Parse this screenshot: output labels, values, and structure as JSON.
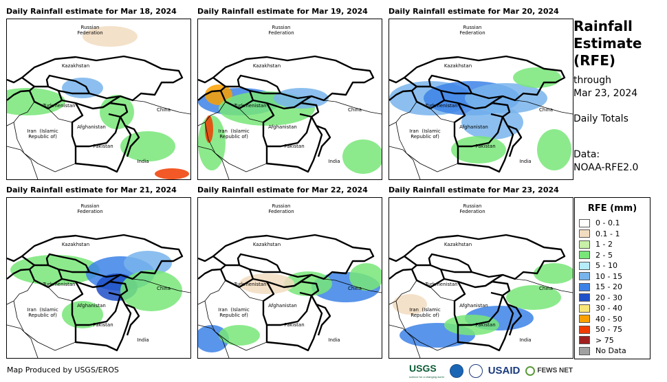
{
  "panels": [
    {
      "title": "Daily Rainfall estimate for Mar 18, 2024"
    },
    {
      "title": "Daily Rainfall estimate for Mar 19, 2024"
    },
    {
      "title": "Daily Rainfall estimate for Mar 20, 2024"
    },
    {
      "title": "Daily Rainfall estimate for Mar 21, 2024"
    },
    {
      "title": "Daily Rainfall estimate for Mar 22, 2024"
    },
    {
      "title": "Daily Rainfall estimate for Mar 23, 2024"
    }
  ],
  "labels": {
    "russia": "Russian\nFederation",
    "kazakhstan": "Kazakhstan",
    "turkmenistan": "Turkmenistan",
    "china": "China",
    "iran": "Iran  (Islamic\nRepublic of)",
    "afghanistan": "Afghanistan",
    "pakistan": "Pakistan",
    "india": "India"
  },
  "sidebar": {
    "title_line1": "Rainfall",
    "title_line2": "Estimate",
    "title_line3": "(RFE)",
    "through": "through",
    "date": "Mar 23, 2024",
    "totals": "Daily Totals",
    "data_label": "Data:",
    "data_source": "NOAA-RFE2.0"
  },
  "legend": {
    "title": "RFE (mm)",
    "items": [
      {
        "label": "0 - 0.1",
        "color": "#ffffff"
      },
      {
        "label": "0.1 - 1",
        "color": "#f2dcc0"
      },
      {
        "label": "1 - 2",
        "color": "#c8f0a8"
      },
      {
        "label": "2 - 5",
        "color": "#78e678"
      },
      {
        "label": "5 - 10",
        "color": "#b4ecf8"
      },
      {
        "label": "10 - 15",
        "color": "#78b4ec"
      },
      {
        "label": "15 - 20",
        "color": "#3c82e6"
      },
      {
        "label": "20 - 30",
        "color": "#1e50c8"
      },
      {
        "label": "30 - 40",
        "color": "#fae678"
      },
      {
        "label": "40 - 50",
        "color": "#faa000"
      },
      {
        "label": "50 - 75",
        "color": "#f03c00"
      },
      {
        "label": "> 75",
        "color": "#a01e1e"
      },
      {
        "label": "No Data",
        "color": "#a0a0a0"
      }
    ]
  },
  "credit": "Map Produced by USGS/EROS",
  "logos": {
    "usgs": "USGS",
    "usgs_tagline": "science for a changing world",
    "usaid": "USAID",
    "fews": "FEWS NET"
  }
}
